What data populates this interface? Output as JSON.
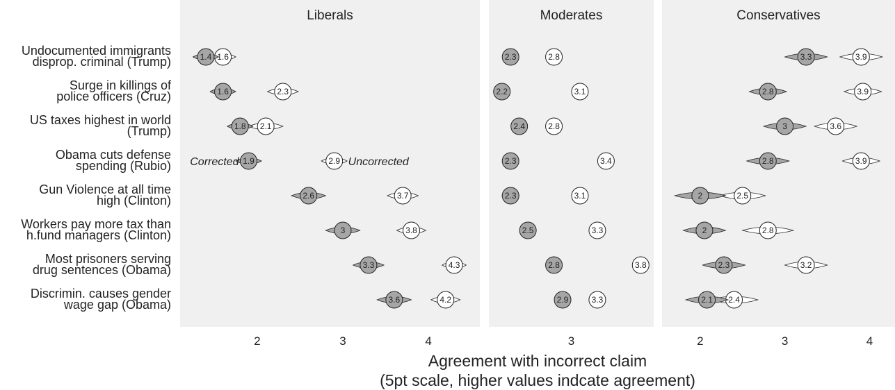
{
  "chart_data": {
    "type": "scatter",
    "xlabel": [
      "Agreement with incorrect claim",
      "(5pt scale, higher values indcate agreement)"
    ],
    "series": [
      {
        "name": "Corrected",
        "color": "#a6a6a6"
      },
      {
        "name": "Uncorrected",
        "color": "#ffffff"
      }
    ],
    "annotations": {
      "corrected": "Corrected",
      "uncorrected": "Uncorrected"
    },
    "claims": [
      [
        "Undocumented immigrants",
        "disprop. criminal (Trump)"
      ],
      [
        "Surge in killings of",
        "police officers (Cruz)"
      ],
      [
        "US taxes highest in world",
        "(Trump)"
      ],
      [
        "Obama cuts defense",
        "spending (Rubio)"
      ],
      [
        "Gun Violence at all time",
        "high (Clinton)"
      ],
      [
        "Workers pay more tax than",
        "h.fund managers (Clinton)"
      ],
      [
        "Most prisoners serving",
        "drug sentences (Obama)"
      ],
      [
        "Discrimin. causes gender",
        "wage gap (Obama)"
      ]
    ],
    "panels": [
      {
        "title": "Liberals",
        "xticks": [
          2,
          3,
          4
        ],
        "xlim": [
          1.1,
          4.6
        ],
        "corrected": [
          1.4,
          1.6,
          1.8,
          1.9,
          2.6,
          3.0,
          3.3,
          3.6
        ],
        "corrected_labels": [
          "1.4",
          "1.6",
          "1.8",
          "1.9",
          "2.6",
          "3",
          "3.3",
          "3.6"
        ],
        "uncorrected": [
          1.6,
          2.3,
          2.1,
          2.9,
          3.7,
          3.8,
          4.3,
          4.2
        ],
        "uncorrected_labels": [
          "1.6",
          "2.3",
          "2.1",
          "2.9",
          "3.7",
          "3.8",
          "4.3",
          "4.2"
        ],
        "corrected_ci_half": [
          0.15,
          0.15,
          0.15,
          0.15,
          0.2,
          0.2,
          0.18,
          0.2
        ],
        "uncorrected_ci_half": [
          0.15,
          0.18,
          0.2,
          0.15,
          0.18,
          0.17,
          0.14,
          0.17
        ]
      },
      {
        "title": "Moderates",
        "xticks": [
          3
        ],
        "xlim": [
          2.05,
          3.95
        ],
        "corrected": [
          2.3,
          2.2,
          2.4,
          2.3,
          2.3,
          2.5,
          2.8,
          2.9
        ],
        "corrected_labels": [
          "2.3",
          "2.2",
          "2.4",
          "2.3",
          "2.3",
          "2.5",
          "2.8",
          "2.9"
        ],
        "uncorrected": [
          2.8,
          3.1,
          2.8,
          3.4,
          3.1,
          3.3,
          3.8,
          3.3
        ],
        "uncorrected_labels": [
          "2.8",
          "3.1",
          "2.8",
          "3.4",
          "3.1",
          "3.3",
          "3.8",
          "3.3"
        ],
        "corrected_ci_half": [
          0.08,
          0.08,
          0.08,
          0.08,
          0.1,
          0.08,
          0.08,
          0.08
        ],
        "uncorrected_ci_half": [
          0.08,
          0.08,
          0.08,
          0.07,
          0.08,
          0.08,
          0.07,
          0.08
        ]
      },
      {
        "title": "Conservatives",
        "xticks": [
          2,
          3,
          4
        ],
        "xlim": [
          1.55,
          4.3
        ],
        "corrected": [
          3.25,
          2.8,
          3.0,
          2.8,
          2.0,
          2.05,
          2.28,
          2.08
        ],
        "corrected_labels": [
          "3.3",
          "2.8",
          "3",
          "2.8",
          "2",
          "2",
          "2.3",
          "2.1"
        ],
        "uncorrected": [
          3.9,
          3.92,
          3.6,
          3.9,
          2.5,
          2.8,
          3.25,
          2.4
        ],
        "uncorrected_labels": [
          "3.9",
          "3.9",
          "3.6",
          "3.9",
          "2.5",
          "2.8",
          "3.2",
          "2.4"
        ],
        "corrected_ci_half": [
          0.25,
          0.22,
          0.25,
          0.25,
          0.3,
          0.25,
          0.25,
          0.25
        ],
        "uncorrected_ci_half": [
          0.25,
          0.22,
          0.25,
          0.22,
          0.27,
          0.3,
          0.25,
          0.28
        ]
      }
    ]
  }
}
